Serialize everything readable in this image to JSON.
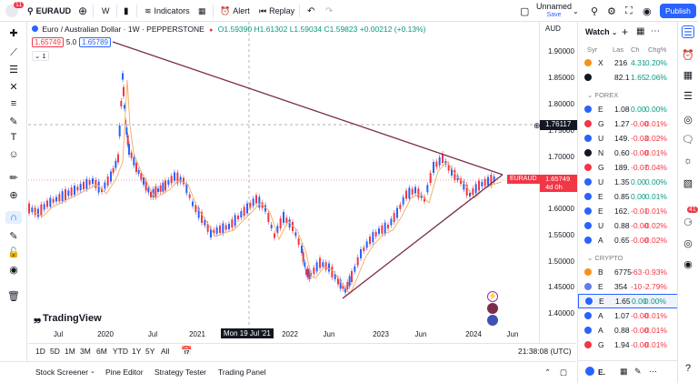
{
  "topbar": {
    "symbol": "EURAUD",
    "interval": "W",
    "indicators": "Indicators",
    "alert": "Alert",
    "replay": "Replay",
    "layout_name": "Unnamed",
    "layout_status": "Save",
    "publish": "Publish",
    "notif_count": "11"
  },
  "legend": {
    "title": "Euro / Australian Dollar · 1W · PEPPERSTONE",
    "ohlc": "O1.59390 H1.61302 L1.59034 C1.59823 +0.00212 (+0.13%)",
    "bid": "1.65749",
    "spread": "5.0",
    "ask": "1.65789",
    "indicator_count": "1"
  },
  "price_axis": {
    "currency": "AUD",
    "labels": [
      "1.90000",
      "1.85000",
      "1.80000",
      "1.75000",
      "1.70000",
      "1.65000",
      "1.60000",
      "1.55000",
      "1.50000",
      "1.45000",
      "1.40000"
    ],
    "cursor_price": "1.76117",
    "current_tag": "EURAUD",
    "current_price": "1.65749",
    "countdown": "4d 0h"
  },
  "time_axis": {
    "labels": [
      "Jul",
      "2020",
      "Jul",
      "2021",
      "2022",
      "Jun",
      "2023",
      "Jun",
      "2024",
      "Jun"
    ],
    "crosshair": "Mon 19 Jul '21"
  },
  "range_bar": {
    "ranges": [
      "1D",
      "5D",
      "1M",
      "3M",
      "6M",
      "YTD",
      "1Y",
      "5Y",
      "All"
    ],
    "clock": "21:38:08 (UTC)"
  },
  "bottom": {
    "tabs": [
      "Stock Screener",
      "Pine Editor",
      "Strategy Tester",
      "Trading Panel"
    ]
  },
  "logo": "TradingView",
  "watchlist": {
    "title": "Watch",
    "cols": [
      "Syr",
      "Las",
      "Ch",
      "Chg%"
    ],
    "top": [
      {
        "sym": "X",
        "last": "216",
        "ch": "4.31",
        "chp": "0.20%",
        "dir": "pos",
        "color": "#f7931a"
      },
      {
        "sym": "",
        "last": "82.1",
        "ch": "1.65",
        "chp": "2.06%",
        "dir": "pos",
        "color": "#131722"
      }
    ],
    "forex_label": "FOREX",
    "forex": [
      {
        "sym": "E",
        "last": "1.08",
        "ch": "0.00",
        "chp": "0.00%",
        "dir": "pos",
        "color": "#2962ff"
      },
      {
        "sym": "G",
        "last": "1.27",
        "ch": "-0.00",
        "chp": "-0.01%",
        "dir": "neg",
        "color": "#f23645"
      },
      {
        "sym": "U",
        "last": "149.",
        "ch": "-0.03",
        "chp": "-0.02%",
        "dir": "neg",
        "color": "#2962ff"
      },
      {
        "sym": "N",
        "last": "0.60",
        "ch": "-0.00",
        "chp": "-0.01%",
        "dir": "neg",
        "color": "#131722"
      },
      {
        "sym": "G",
        "last": "189.",
        "ch": "-0.07",
        "chp": "-0.04%",
        "dir": "neg",
        "color": "#f23645"
      },
      {
        "sym": "U",
        "last": "1.35",
        "ch": "0.00",
        "chp": "0.00%",
        "dir": "pos",
        "color": "#2962ff"
      },
      {
        "sym": "E",
        "last": "0.85",
        "ch": "0.00",
        "chp": "0.01%",
        "dir": "pos",
        "color": "#2962ff"
      },
      {
        "sym": "E",
        "last": "162.",
        "ch": "-0.01",
        "chp": "-0.01%",
        "dir": "neg",
        "color": "#2962ff"
      },
      {
        "sym": "U",
        "last": "0.88",
        "ch": "-0.00",
        "chp": "-0.02%",
        "dir": "neg",
        "color": "#2962ff"
      },
      {
        "sym": "A",
        "last": "0.65",
        "ch": "-0.00",
        "chp": "-0.02%",
        "dir": "neg",
        "color": "#2962ff"
      }
    ],
    "crypto_label": "CRYPTO",
    "crypto": [
      {
        "sym": "B",
        "last": "6775",
        "ch": "-63",
        "chp": "-0.93%",
        "dir": "neg",
        "color": "#f7931a"
      },
      {
        "sym": "E",
        "last": "354",
        "ch": "-10",
        "chp": "-2.79%",
        "dir": "neg",
        "color": "#627eea"
      },
      {
        "sym": "E",
        "last": "1.65",
        "ch": "0.00",
        "chp": "0.00%",
        "dir": "pos",
        "color": "#2962ff"
      },
      {
        "sym": "A",
        "last": "1.07",
        "ch": "-0.00",
        "chp": "-0.01%",
        "dir": "neg",
        "color": "#2962ff"
      },
      {
        "sym": "A",
        "last": "0.88",
        "ch": "-0.00",
        "chp": "-0.01%",
        "dir": "neg",
        "color": "#2962ff"
      },
      {
        "sym": "G",
        "last": "1.94",
        "ch": "-0.00",
        "chp": "-0.01%",
        "dir": "neg",
        "color": "#f23645"
      }
    ],
    "footer_sym": "E."
  },
  "rightbar": {
    "badge": "41"
  },
  "colors": {
    "up": "#089981",
    "down": "#f23645",
    "upbar": "#2962ff",
    "accent": "#2962ff",
    "triangle": "#7b2c4a"
  }
}
